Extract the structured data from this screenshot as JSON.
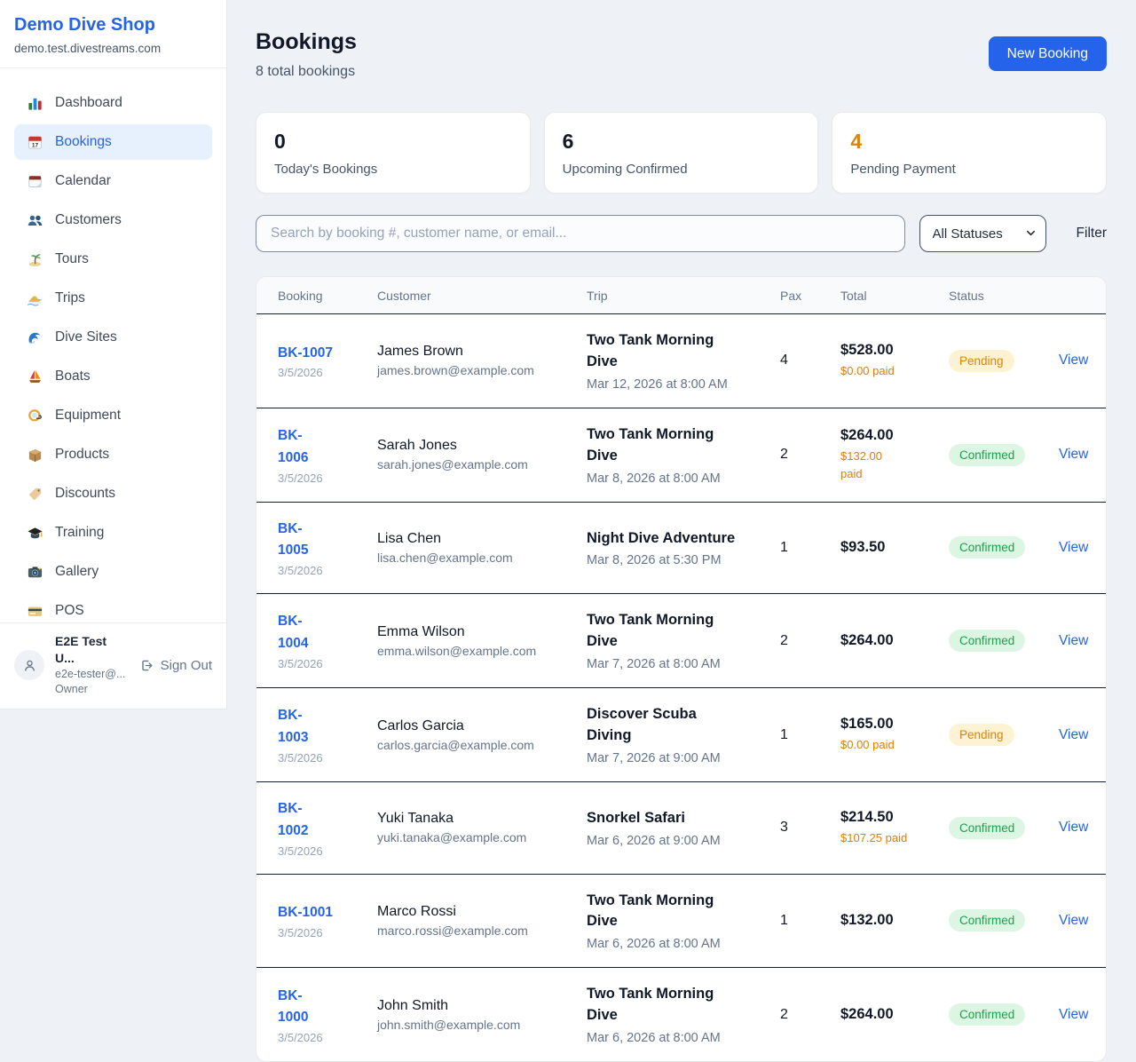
{
  "brand": {
    "name": "Demo Dive Shop",
    "domain": "demo.test.divestreams.com"
  },
  "sidebar": {
    "items": [
      {
        "icon": "bar-chart-icon",
        "label": "Dashboard",
        "active": false
      },
      {
        "icon": "calendar-date-icon",
        "label": "Bookings",
        "active": true
      },
      {
        "icon": "tear-calendar-icon",
        "label": "Calendar",
        "active": false
      },
      {
        "icon": "people-icon",
        "label": "Customers",
        "active": false
      },
      {
        "icon": "island-icon",
        "label": "Tours",
        "active": false
      },
      {
        "icon": "speedboat-icon",
        "label": "Trips",
        "active": false
      },
      {
        "icon": "wave-icon",
        "label": "Dive Sites",
        "active": false
      },
      {
        "icon": "sailboat-icon",
        "label": "Boats",
        "active": false
      },
      {
        "icon": "dive-mask-icon",
        "label": "Equipment",
        "active": false
      },
      {
        "icon": "package-icon",
        "label": "Products",
        "active": false
      },
      {
        "icon": "tag-icon",
        "label": "Discounts",
        "active": false
      },
      {
        "icon": "grad-cap-icon",
        "label": "Training",
        "active": false
      },
      {
        "icon": "camera-icon",
        "label": "Gallery",
        "active": false
      },
      {
        "icon": "credit-card-icon",
        "label": "POS",
        "active": false
      }
    ],
    "user": {
      "name": "E2E Test U...",
      "email": "e2e-tester@...",
      "role": "Owner",
      "sign_out_label": "Sign Out"
    }
  },
  "header": {
    "title": "Bookings",
    "subtitle": "8 total bookings",
    "new_booking_label": "New Booking"
  },
  "stats": [
    {
      "value": "0",
      "label": "Today's Bookings",
      "accent": false
    },
    {
      "value": "6",
      "label": "Upcoming Confirmed",
      "accent": false
    },
    {
      "value": "4",
      "label": "Pending Payment",
      "accent": true
    }
  ],
  "filters": {
    "search_placeholder": "Search by booking #, customer name, or email...",
    "status_selected": "All Statuses",
    "filter_label": "Filter"
  },
  "table": {
    "columns": [
      "Booking",
      "Customer",
      "Trip",
      "Pax",
      "Total",
      "Status"
    ],
    "rows": [
      {
        "id": "BK-1007",
        "date": "3/5/2026",
        "customer": "James Brown",
        "email": "james.brown@example.com",
        "trip": "Two Tank Morning\nDive",
        "trip_time": "Mar 12, 2026 at 8:00 AM",
        "pax": "4",
        "total": "$528.00",
        "paid": "$0.00 paid",
        "status": "Pending",
        "action": "View"
      },
      {
        "id": "BK-\n1006",
        "date": "3/5/2026",
        "customer": "Sarah Jones",
        "email": "sarah.jones@example.com",
        "trip": "Two Tank Morning\nDive",
        "trip_time": "Mar 8, 2026 at 8:00 AM",
        "pax": "2",
        "total": "$264.00",
        "paid": "$132.00\npaid",
        "status": "Confirmed",
        "action": "View"
      },
      {
        "id": "BK-\n1005",
        "date": "3/5/2026",
        "customer": "Lisa Chen",
        "email": "lisa.chen@example.com",
        "trip": "Night Dive Adventure",
        "trip_time": "Mar 8, 2026 at 5:30 PM",
        "pax": "1",
        "total": "$93.50",
        "paid": "",
        "status": "Confirmed",
        "action": "View"
      },
      {
        "id": "BK-\n1004",
        "date": "3/5/2026",
        "customer": "Emma Wilson",
        "email": "emma.wilson@example.com",
        "trip": "Two Tank Morning\nDive",
        "trip_time": "Mar 7, 2026 at 8:00 AM",
        "pax": "2",
        "total": "$264.00",
        "paid": "",
        "status": "Confirmed",
        "action": "View"
      },
      {
        "id": "BK-\n1003",
        "date": "3/5/2026",
        "customer": "Carlos Garcia",
        "email": "carlos.garcia@example.com",
        "trip": "Discover Scuba\nDiving",
        "trip_time": "Mar 7, 2026 at 9:00 AM",
        "pax": "1",
        "total": "$165.00",
        "paid": "$0.00 paid",
        "status": "Pending",
        "action": "View"
      },
      {
        "id": "BK-\n1002",
        "date": "3/5/2026",
        "customer": "Yuki Tanaka",
        "email": "yuki.tanaka@example.com",
        "trip": "Snorkel Safari",
        "trip_time": "Mar 6, 2026 at 9:00 AM",
        "pax": "3",
        "total": "$214.50",
        "paid": "$107.25 paid",
        "status": "Confirmed",
        "action": "View"
      },
      {
        "id": "BK-1001",
        "date": "3/5/2026",
        "customer": "Marco Rossi",
        "email": "marco.rossi@example.com",
        "trip": "Two Tank Morning\nDive",
        "trip_time": "Mar 6, 2026 at 8:00 AM",
        "pax": "1",
        "total": "$132.00",
        "paid": "",
        "status": "Confirmed",
        "action": "View"
      },
      {
        "id": "BK-\n1000",
        "date": "3/5/2026",
        "customer": "John Smith",
        "email": "john.smith@example.com",
        "trip": "Two Tank Morning\nDive",
        "trip_time": "Mar 6, 2026 at 8:00 AM",
        "pax": "2",
        "total": "$264.00",
        "paid": "",
        "status": "Confirmed",
        "action": "View"
      }
    ]
  },
  "colors": {
    "accent_blue": "#2563eb",
    "orange": "#dd8408",
    "green": "#19a34a",
    "pending_bg": "#fdf3d3",
    "confirmed_bg": "#ddf6e4"
  }
}
